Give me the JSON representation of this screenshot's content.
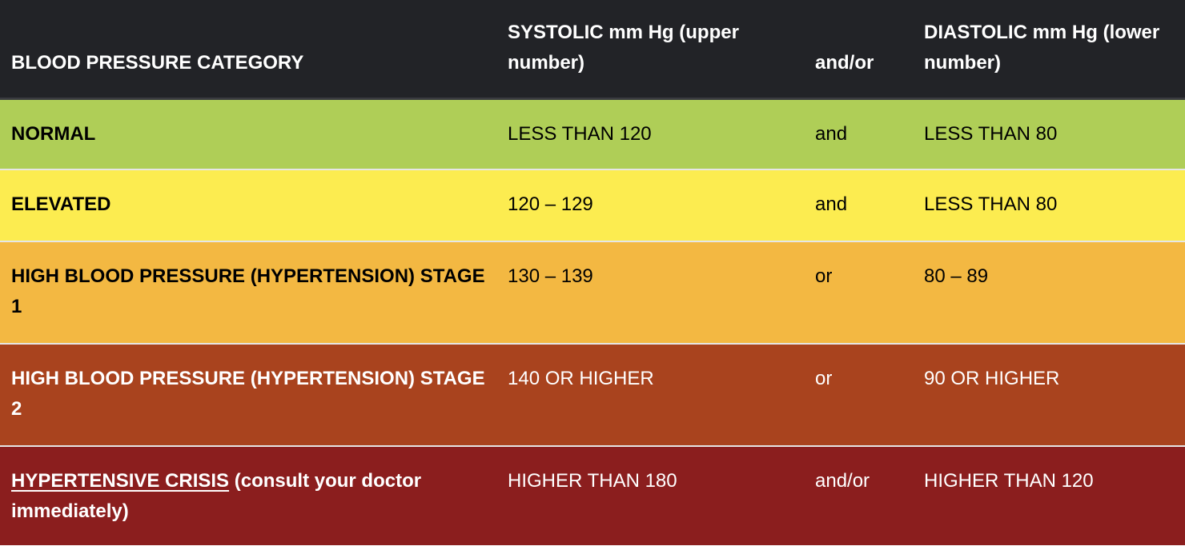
{
  "header": {
    "category": "BLOOD PRESSURE CATEGORY",
    "systolic": "SYSTOLIC mm Hg (upper number)",
    "andor": "and/or",
    "diastolic": "DIASTOLIC mm Hg (lower number)"
  },
  "rows": [
    {
      "category": "NORMAL",
      "systolic": "LESS THAN 120",
      "op": "and",
      "diastolic": "LESS THAN 80",
      "color": "#afce57"
    },
    {
      "category": "ELEVATED",
      "systolic": "120 – 129",
      "op": "and",
      "diastolic": "LESS THAN 80",
      "color": "#fcec50"
    },
    {
      "category": "HIGH BLOOD PRESSURE (HYPERTENSION) STAGE 1",
      "systolic": "130 – 139",
      "op": "or",
      "diastolic": "80 – 89",
      "color": "#f3b842"
    },
    {
      "category": "HIGH BLOOD PRESSURE (HYPERTENSION) STAGE 2",
      "systolic": "140 OR HIGHER",
      "op": "or",
      "diastolic": "90 OR HIGHER",
      "color": "#a9431e"
    },
    {
      "category_link": "HYPERTENSIVE CRISIS",
      "category": " (consult your doctor immediately)",
      "systolic": "HIGHER THAN 180",
      "op": "and/or",
      "diastolic": "HIGHER THAN 120",
      "color": "#8b1e1e"
    }
  ]
}
